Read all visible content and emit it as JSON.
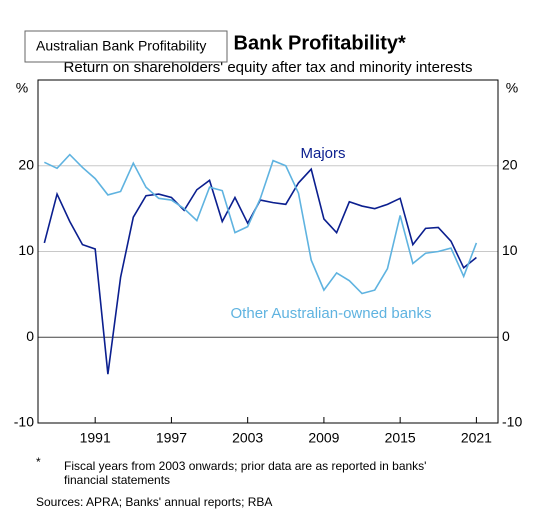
{
  "chart_data": {
    "type": "line",
    "title": "Australian Bank Profitability*",
    "subtitle": "Return on shareholders' equity after tax and minority interests",
    "y_unit": "%",
    "x": [
      1987,
      1988,
      1989,
      1990,
      1991,
      1992,
      1993,
      1994,
      1995,
      1996,
      1997,
      1998,
      1999,
      2000,
      2001,
      2002,
      2003,
      2004,
      2005,
      2006,
      2007,
      2008,
      2009,
      2010,
      2011,
      2012,
      2013,
      2014,
      2015,
      2016,
      2017,
      2018,
      2019,
      2020,
      2021
    ],
    "series": [
      {
        "name": "Majors",
        "color": "#0b1f8f",
        "values": [
          11,
          16.7,
          13.5,
          10.8,
          10.3,
          -4.3,
          7,
          14,
          16.5,
          16.7,
          16.3,
          14.8,
          17.2,
          18.3,
          13.5,
          16.3,
          13.3,
          16,
          15.7,
          15.5,
          18,
          19.6,
          13.8,
          12.2,
          15.8,
          15.3,
          15,
          15.5,
          16.2,
          10.8,
          12.7,
          12.8,
          11.2,
          8.1,
          9.3
        ]
      },
      {
        "name": "Other Australian-owned banks",
        "color": "#5fb3e0",
        "values": [
          20.4,
          19.7,
          21.3,
          19.8,
          18.5,
          16.6,
          17,
          20.3,
          17.5,
          16.2,
          16,
          15,
          13.6,
          17.5,
          17.1,
          12.2,
          12.9,
          16.2,
          20.6,
          20,
          16.8,
          9,
          5.5,
          7.5,
          6.6,
          5.1,
          5.5,
          8,
          14.2,
          8.6,
          9.8,
          10,
          10.4,
          7.1,
          11
        ]
      }
    ],
    "xlim": [
      1986.5,
      2022.7
    ],
    "xticks": [
      1991,
      1997,
      2003,
      2009,
      2015,
      2021
    ],
    "ylim": [
      -10,
      30
    ],
    "yticks": [
      -10,
      0,
      10,
      20
    ],
    "grid": true,
    "footnote_marker": "*",
    "footnote": [
      "Fiscal years from 2003 onwards; prior data are as reported in banks'",
      "financial statements"
    ],
    "sources": "Sources: APRA; Banks' annual reports; RBA",
    "tooltip": "Australian Bank Profitability"
  }
}
